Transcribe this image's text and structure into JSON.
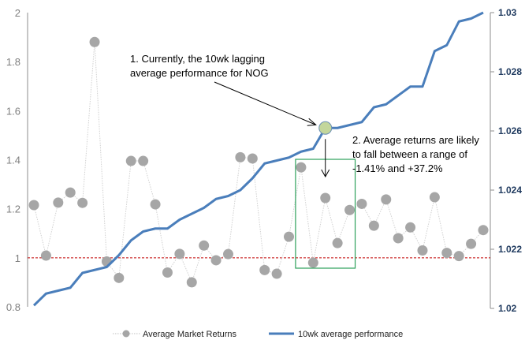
{
  "chart_data": {
    "type": "line",
    "title": "",
    "xlabel": "",
    "ylabel": "",
    "y_left": {
      "range": [
        0.8,
        2
      ],
      "ticks": [
        "0.8",
        "1",
        "1.2",
        "1.4",
        "1.6",
        "1.8",
        "2"
      ]
    },
    "y_right": {
      "range": [
        1.02,
        1.03
      ],
      "ticks": [
        "1.02",
        "1.022",
        "1.024",
        "1.026",
        "1.028",
        "1.03"
      ]
    },
    "grid": false,
    "legend_position": "bottom",
    "reference_line": {
      "axis": "left",
      "value": 1,
      "color": "#c00000",
      "style": "dashed"
    },
    "series": [
      {
        "name": "Average Market Returns",
        "axis": "left",
        "style": "markers with dotted line",
        "color": "#a6a6a6",
        "values": [
          1.215,
          1.009,
          1.225,
          1.266,
          1.224,
          1.88,
          0.985,
          0.918,
          1.395,
          1.395,
          1.218,
          0.94,
          1.016,
          0.9,
          1.05,
          0.99,
          1.015,
          1.41,
          1.405,
          0.95,
          0.935,
          1.086,
          1.369,
          0.98,
          1.244,
          1.06,
          1.195,
          1.22,
          1.131,
          1.238,
          1.08,
          1.124,
          1.03,
          1.247,
          1.02,
          1.007,
          1.057,
          1.113
        ]
      },
      {
        "name": "10wk average performance",
        "axis": "right",
        "style": "line",
        "color": "#4a7ebb",
        "values": [
          1.0201,
          1.0205,
          1.0206,
          1.0207,
          1.0212,
          1.0213,
          1.0214,
          1.0218,
          1.0223,
          1.0226,
          1.0227,
          1.0227,
          1.023,
          1.0232,
          1.0234,
          1.0237,
          1.0238,
          1.024,
          1.0244,
          1.0249,
          1.025,
          1.0251,
          1.0253,
          1.0254,
          1.0261,
          1.0261,
          1.0262,
          1.0263,
          1.0268,
          1.0269,
          1.0272,
          1.0275,
          1.0275,
          1.0287,
          1.0289,
          1.0297,
          1.0298,
          1.03
        ]
      }
    ],
    "highlight_point": {
      "series": "10wk average performance",
      "index": 24,
      "color": "#c3d69b"
    },
    "highlight_range": {
      "series": "Average Market Returns",
      "from_index": 22,
      "to_index": 26,
      "color": "#2ca05a"
    },
    "annotations": [
      {
        "lines": [
          "1. Currently, the 10wk lagging",
          "average performance for NOG"
        ]
      },
      {
        "lines": [
          "2. Average returns are likely",
          "to fall between a range of",
          "-1.41% and +37.2%"
        ]
      }
    ]
  }
}
